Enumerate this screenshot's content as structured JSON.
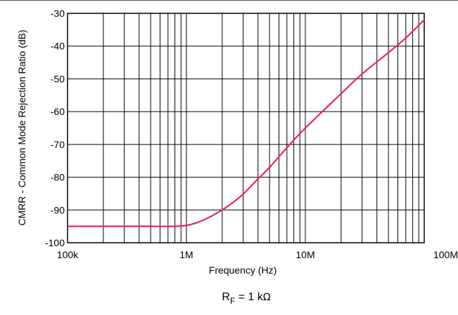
{
  "chart_data": {
    "type": "line",
    "title": "",
    "xlabel": "Frequency (Hz)",
    "ylabel": "CMRR - Common Mode Rejection Ratio (dB)",
    "x_scale": "log",
    "xlim": [
      100000,
      100000000
    ],
    "ylim": [
      -100,
      -30
    ],
    "grid": true,
    "x_tick_values": [
      100000,
      1000000,
      10000000,
      100000000
    ],
    "x_tick_labels": [
      "100k",
      "1M",
      "10M",
      "100M"
    ],
    "y_tick_values": [
      -30,
      -40,
      -50,
      -60,
      -70,
      -80,
      -90,
      -100
    ],
    "y_tick_labels": [
      "-30",
      "-40",
      "-50",
      "-60",
      "-70",
      "-80",
      "-90",
      "-100"
    ],
    "condition": {
      "base": "R",
      "sub": "F",
      "rest": " = 1 k",
      "unit": "Ω"
    },
    "series": [
      {
        "color": "#e8265a",
        "x": [
          100000,
          200000,
          500000,
          800000,
          1000000,
          1200000,
          1500000,
          2000000,
          2500000,
          3000000,
          4000000,
          5000000,
          7000000,
          10000000,
          20000000,
          30000000,
          50000000,
          70000000,
          100000000
        ],
        "y": [
          -95,
          -95,
          -95,
          -95,
          -94.7,
          -94,
          -92.5,
          -90,
          -87.5,
          -85.2,
          -80.5,
          -77,
          -71,
          -65,
          -54.5,
          -48.5,
          -42,
          -37.5,
          -32
        ]
      }
    ]
  }
}
